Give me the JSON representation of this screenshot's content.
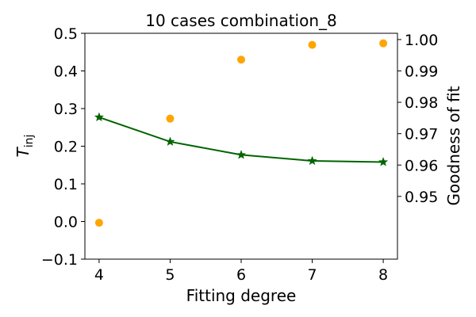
{
  "chart_data": {
    "type": "line",
    "title": "10 cases combination_8",
    "xlabel": "Fitting degree",
    "ylabel_left": {
      "base": "T",
      "subscript": "inj"
    },
    "ylabel_right": "Goodness of fit",
    "x": [
      4,
      5,
      6,
      7,
      8
    ],
    "xlim": [
      3.8,
      8.2
    ],
    "ylim_left": [
      -0.1,
      0.5
    ],
    "ylim_right": [
      0.93,
      1.002
    ],
    "x_ticks": [
      4,
      5,
      6,
      7,
      8
    ],
    "y_ticks_left": [
      -0.1,
      0.0,
      0.1,
      0.2,
      0.3,
      0.4,
      0.5
    ],
    "y_tick_labels_left": [
      "−0.1",
      "0.0",
      "0.1",
      "0.2",
      "0.3",
      "0.4",
      "0.5"
    ],
    "y_ticks_right": [
      0.95,
      0.96,
      0.97,
      0.98,
      0.99,
      1.0
    ],
    "y_tick_labels_right": [
      "0.95",
      "0.96",
      "0.97",
      "0.98",
      "0.99",
      "1.00"
    ],
    "grid": false,
    "series": [
      {
        "axis": "left",
        "style": "line-star",
        "color": "#006400",
        "values": [
          0.277,
          0.212,
          0.177,
          0.161,
          0.158
        ]
      },
      {
        "axis": "right",
        "style": "scatter",
        "color": "#FFA500",
        "values": [
          0.9416,
          0.9748,
          0.9936,
          0.9983,
          0.9988
        ]
      }
    ]
  }
}
